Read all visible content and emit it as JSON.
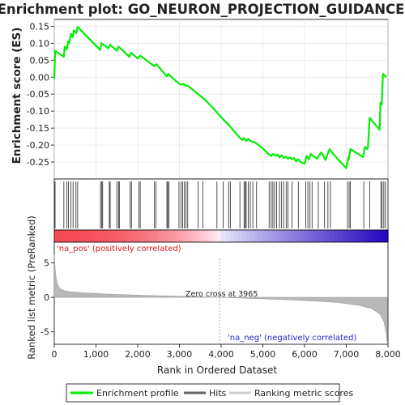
{
  "chart_data": {
    "type": "line",
    "title": "Enrichment plot: GO_NEURON_PROJECTION_GUIDANCE",
    "es_panel": {
      "ylabel": "Enrichment score (ES)",
      "ylim": [
        -0.3,
        0.17
      ],
      "yticks": [
        0.15,
        0.1,
        0.05,
        0.0,
        -0.05,
        -0.1,
        -0.15,
        -0.2,
        -0.25
      ],
      "ytick_labels": [
        "0.15",
        "0.10",
        "0.05",
        "0.00",
        "-0.05",
        "-0.10",
        "-0.15",
        "-0.20",
        "-0.25"
      ],
      "series": [
        {
          "name": "Enrichment profile",
          "color": "#00ee00",
          "x": [
            0,
            20,
            230,
            250,
            300,
            330,
            360,
            400,
            440,
            470,
            530,
            560,
            1100,
            1130,
            1300,
            1340,
            1500,
            1540,
            1560,
            1800,
            1840,
            2000,
            2060,
            2400,
            2450,
            2700,
            2730,
            2760,
            3000,
            3050,
            3100,
            3150,
            3200,
            3400,
            3600,
            3800,
            4000,
            4200,
            4400,
            4500,
            4550,
            4600,
            4650,
            4700,
            4800,
            4900,
            5000,
            5100,
            5150,
            5200,
            5250,
            5300,
            5350,
            5400,
            5450,
            5500,
            5550,
            5600,
            5650,
            5700,
            5750,
            5800,
            5850,
            5900,
            6000,
            6050,
            6100,
            6150,
            6200,
            6300,
            6400,
            6450,
            6500,
            6550,
            6600,
            6700,
            6800,
            6900,
            7000,
            7050,
            7060,
            7100,
            7400,
            7450,
            7500,
            7520,
            7560,
            7800,
            7820,
            7850,
            7880,
            7960
          ],
          "y": [
            -0.005,
            0.078,
            0.06,
            0.09,
            0.082,
            0.105,
            0.1,
            0.128,
            0.118,
            0.138,
            0.13,
            0.148,
            0.08,
            0.1,
            0.085,
            0.095,
            0.078,
            0.09,
            0.088,
            0.06,
            0.072,
            0.055,
            0.063,
            0.032,
            0.038,
            0.002,
            0.01,
            0.006,
            -0.02,
            -0.022,
            -0.02,
            -0.025,
            -0.025,
            -0.045,
            -0.065,
            -0.09,
            -0.118,
            -0.143,
            -0.172,
            -0.185,
            -0.18,
            -0.188,
            -0.182,
            -0.188,
            -0.192,
            -0.2,
            -0.21,
            -0.222,
            -0.228,
            -0.232,
            -0.226,
            -0.232,
            -0.228,
            -0.236,
            -0.23,
            -0.238,
            -0.234,
            -0.24,
            -0.236,
            -0.242,
            -0.238,
            -0.248,
            -0.242,
            -0.25,
            -0.255,
            -0.232,
            -0.242,
            -0.226,
            -0.232,
            -0.24,
            -0.222,
            -0.232,
            -0.244,
            -0.228,
            -0.212,
            -0.228,
            -0.242,
            -0.255,
            -0.268,
            -0.236,
            -0.242,
            -0.212,
            -0.235,
            -0.205,
            -0.212,
            -0.206,
            -0.12,
            -0.155,
            -0.075,
            -0.08,
            0.01,
            0.0
          ]
        }
      ]
    },
    "hits_panel": {
      "series_name": "Hits",
      "hit_positions": [
        20,
        230,
        300,
        340,
        400,
        450,
        520,
        560,
        1110,
        1140,
        1160,
        1320,
        1340,
        1500,
        1540,
        1560,
        1820,
        1850,
        2030,
        2060,
        2400,
        2440,
        2700,
        2720,
        2750,
        2990,
        3040,
        3080,
        3120,
        3160,
        3200,
        3450,
        3560,
        3900,
        4050,
        4180,
        4220,
        4450,
        4550,
        4580,
        4600,
        4650,
        4700,
        4760,
        4850,
        5150,
        5200,
        5240,
        5280,
        5330,
        5400,
        5450,
        5500,
        5560,
        5600,
        5700,
        5850,
        6030,
        6080,
        6130,
        6180,
        6330,
        6480,
        6560,
        6620,
        7030,
        7070,
        7100,
        7420,
        7560,
        7830,
        7860,
        7900,
        7940
      ]
    },
    "color_bar": {
      "label_pos": "'na_pos' (positively correlated)",
      "label_neg": "'na_neg' (negatively correlated)",
      "pos_color": "#ff3333",
      "neg_color": "#2222cc"
    },
    "metric_panel": {
      "ylabel": "Ranked list metric (PreRanked)",
      "ylim": [
        -6.8,
        8
      ],
      "yticks": [
        5,
        0,
        -5
      ],
      "ytick_labels": [
        "5",
        "0",
        "-5"
      ],
      "series_name": "Ranking metric scores",
      "fill_color": "#b8b8b8",
      "zero_cross_label": "Zero cross at 3965",
      "zero_cross": 3965,
      "profile_x": [
        0,
        30,
        60,
        100,
        150,
        250,
        400,
        700,
        1200,
        2000,
        3000,
        3965,
        5000,
        6000,
        6800,
        7300,
        7600,
        7800,
        7900,
        7960,
        7980
      ],
      "profile_y": [
        6.2,
        3.5,
        2.2,
        1.6,
        1.2,
        0.95,
        0.8,
        0.65,
        0.5,
        0.32,
        0.15,
        0.0,
        -0.2,
        -0.45,
        -0.75,
        -1.15,
        -1.6,
        -2.4,
        -3.5,
        -5.2,
        -6.5
      ]
    },
    "xaxis": {
      "label": "Rank in Ordered Dataset",
      "xlim": [
        0,
        8000
      ],
      "ticks": [
        0,
        1000,
        2000,
        3000,
        4000,
        5000,
        6000,
        7000,
        8000
      ],
      "tick_labels": [
        "0",
        "1,000",
        "2,000",
        "3,000",
        "4,000",
        "5,000",
        "6,000",
        "7,000",
        "8,000"
      ]
    },
    "legend": {
      "placement": "bottom",
      "items": [
        {
          "label": "Enrichment profile",
          "color": "#00ee00"
        },
        {
          "label": "Hits",
          "color": "#666666"
        },
        {
          "label": "Ranking metric scores",
          "color": "#cccccc"
        }
      ]
    }
  }
}
